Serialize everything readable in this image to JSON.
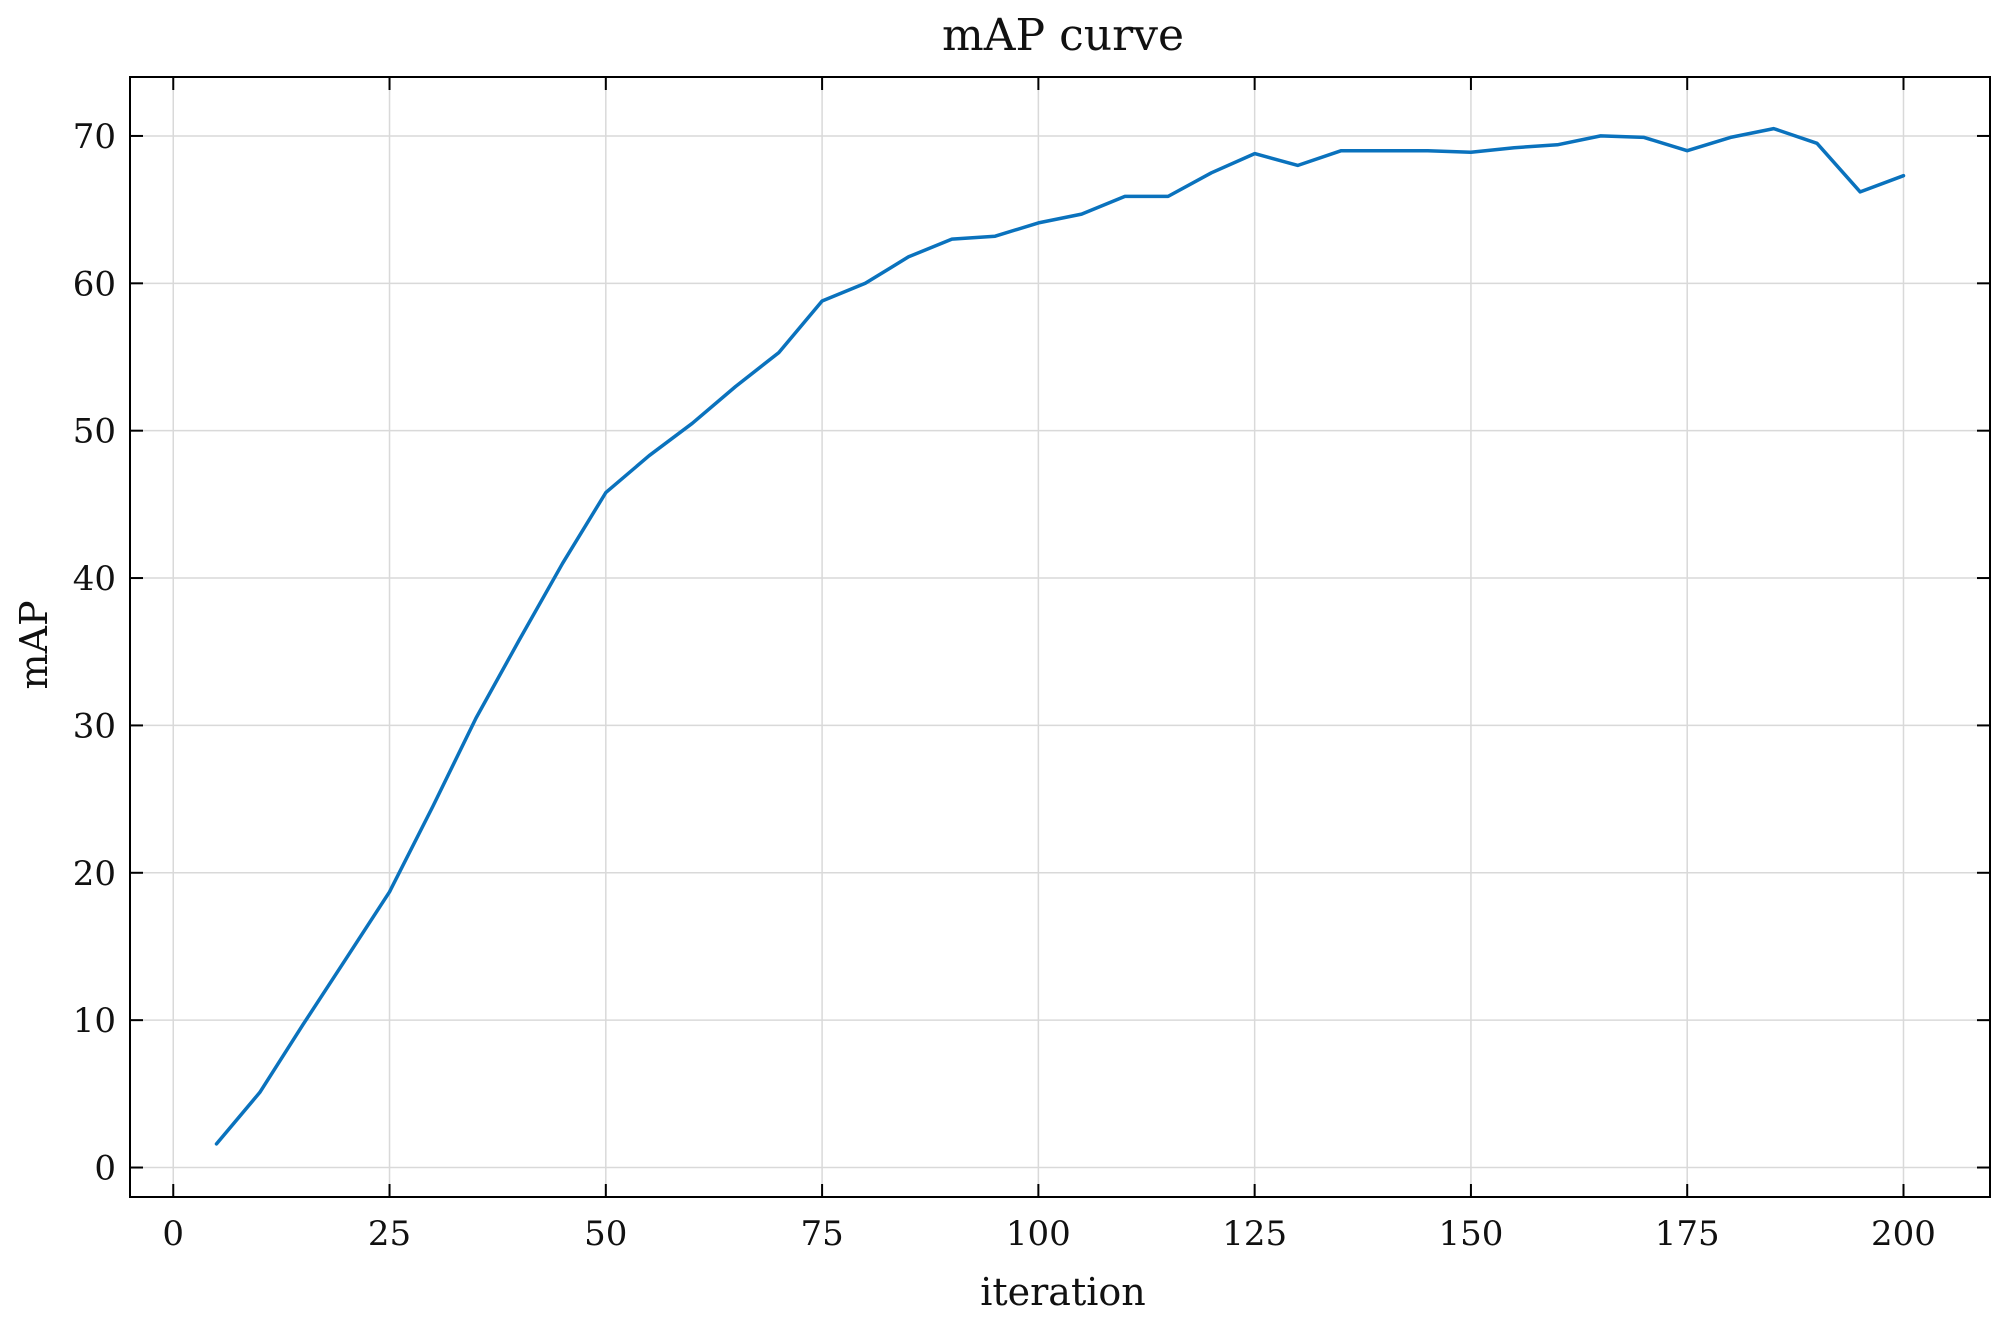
{
  "chart_data": {
    "type": "line",
    "title": "mAP curve",
    "xlabel": "iteration",
    "ylabel": "mAP",
    "xlim": [
      -5,
      210
    ],
    "ylim": [
      -2,
      74
    ],
    "xticks": [
      0,
      25,
      50,
      75,
      100,
      125,
      150,
      175,
      200
    ],
    "yticks": [
      0,
      10,
      20,
      30,
      40,
      50,
      60,
      70
    ],
    "grid": true,
    "legend": "none",
    "series": [
      {
        "color": "#0a72bd",
        "x": [
          5,
          10,
          15,
          20,
          25,
          30,
          35,
          40,
          45,
          50,
          55,
          60,
          65,
          70,
          75,
          80,
          85,
          90,
          95,
          100,
          105,
          110,
          115,
          120,
          125,
          130,
          135,
          140,
          145,
          150,
          155,
          160,
          165,
          170,
          175,
          180,
          185,
          190,
          195,
          200
        ],
        "y": [
          1.6,
          5.1,
          9.7,
          14.2,
          18.7,
          24.5,
          30.5,
          35.8,
          41.0,
          45.8,
          48.3,
          50.5,
          53.0,
          55.3,
          58.8,
          60.0,
          61.8,
          63.0,
          63.2,
          64.1,
          64.7,
          65.9,
          65.9,
          67.5,
          68.8,
          68.0,
          69.0,
          69.0,
          69.0,
          68.9,
          69.2,
          69.4,
          70.0,
          69.9,
          69.0,
          69.9,
          70.5,
          69.5,
          66.2,
          67.3
        ]
      }
    ]
  }
}
